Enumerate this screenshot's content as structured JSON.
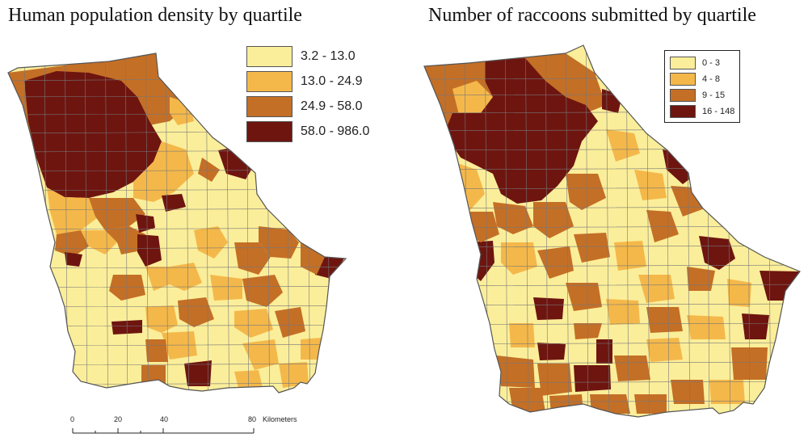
{
  "left_map": {
    "title": "Human population density by quartile",
    "legend": [
      {
        "label": "3.2 - 13.0",
        "color": "#fbee9a"
      },
      {
        "label": "13.0 - 24.9",
        "color": "#f4b84a"
      },
      {
        "label": "24.9 - 58.0",
        "color": "#c46f26"
      },
      {
        "label": "58.0 - 986.0",
        "color": "#6e1510"
      }
    ],
    "scale_bar": {
      "ticks": [
        "0",
        "20",
        "40",
        "80"
      ],
      "unit": "Kilometers"
    }
  },
  "right_map": {
    "title": "Number of raccoons submitted by quartile",
    "legend": [
      {
        "label": "0 - 3",
        "color": "#fbee9a"
      },
      {
        "label": "4 - 8",
        "color": "#f4b84a"
      },
      {
        "label": "9 - 15",
        "color": "#c46f26"
      },
      {
        "label": "16 - 148",
        "color": "#6e1510"
      }
    ]
  },
  "colors": {
    "q1": "#fbee9a",
    "q2": "#f4b84a",
    "q3": "#c46f26",
    "q4": "#6e1510",
    "boundary": "#777777"
  }
}
